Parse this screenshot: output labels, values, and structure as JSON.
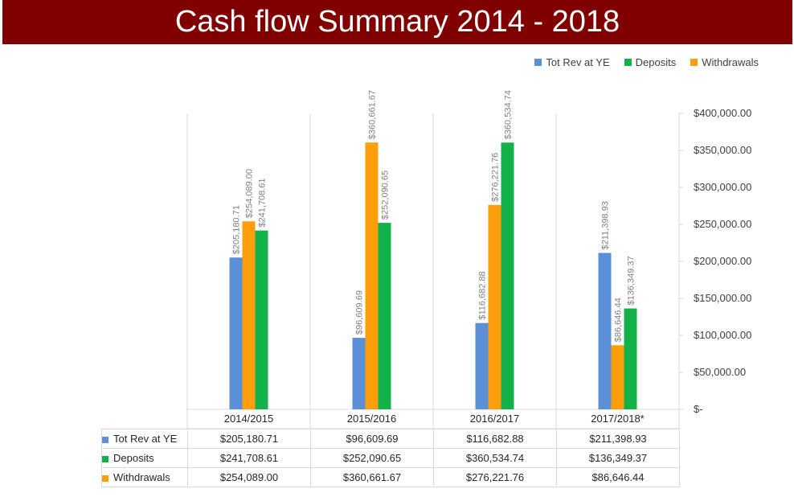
{
  "title": "Cash flow Summary 2014 - 2018",
  "chart_data": {
    "type": "bar",
    "title": "Cash flow Summary 2014 - 2018",
    "categories": [
      "2014/2015",
      "2015/2016",
      "2016/2017",
      "2017/2018*"
    ],
    "series": [
      {
        "name": "Tot Rev at YE",
        "color": "#5b8fd6",
        "values": [
          205180.71,
          96609.69,
          116682.88,
          211398.93
        ],
        "labels": [
          "$205,180.71",
          "$96,609.69",
          "$116,682.88",
          "$211,398.93"
        ]
      },
      {
        "name": "Withdrawals",
        "color": "#ff9e0b",
        "values": [
          254089.0,
          360661.67,
          276221.76,
          86646.44
        ],
        "labels": [
          "$254,089.00",
          "$360,661.67",
          "$276,221.76",
          "$86,646.44"
        ]
      },
      {
        "name": "Deposits",
        "color": "#12b14a",
        "values": [
          241708.61,
          252090.65,
          360534.74,
          136349.37
        ],
        "labels": [
          "$241,708.61",
          "$252,090.65",
          "$360,534.74",
          "$136,349.37"
        ]
      }
    ],
    "ylim": [
      0,
      400000
    ],
    "y_ticks": [
      0,
      50000,
      100000,
      150000,
      200000,
      250000,
      300000,
      350000,
      400000
    ],
    "y_tick_labels": [
      "$-",
      "$50,000.00",
      "$100,000.00",
      "$150,000.00",
      "$200,000.00",
      "$250,000.00",
      "$300,000.00",
      "$350,000.00",
      "$400,000.00"
    ],
    "y_axis_side": "right",
    "legend_position": "top-right",
    "grid": false
  },
  "legend": [
    {
      "label": "Tot Rev at YE",
      "color": "#5b8fd6"
    },
    {
      "label": "Deposits",
      "color": "#12b14a"
    },
    {
      "label": "Withdrawals",
      "color": "#ff9e0b"
    }
  ],
  "table": {
    "rows": [
      {
        "label": "Tot Rev at YE",
        "color": "#5b8fd6",
        "values": [
          "$205,180.71",
          "$96,609.69",
          "$116,682.88",
          "$211,398.93"
        ]
      },
      {
        "label": "Deposits",
        "color": "#12b14a",
        "values": [
          "$241,708.61",
          "$252,090.65",
          "$360,534.74",
          "$136,349.37"
        ]
      },
      {
        "label": "Withdrawals",
        "color": "#ff9e0b",
        "values": [
          "$254,089.00",
          "$360,661.67",
          "$276,221.76",
          "$86,646.44"
        ]
      }
    ]
  }
}
